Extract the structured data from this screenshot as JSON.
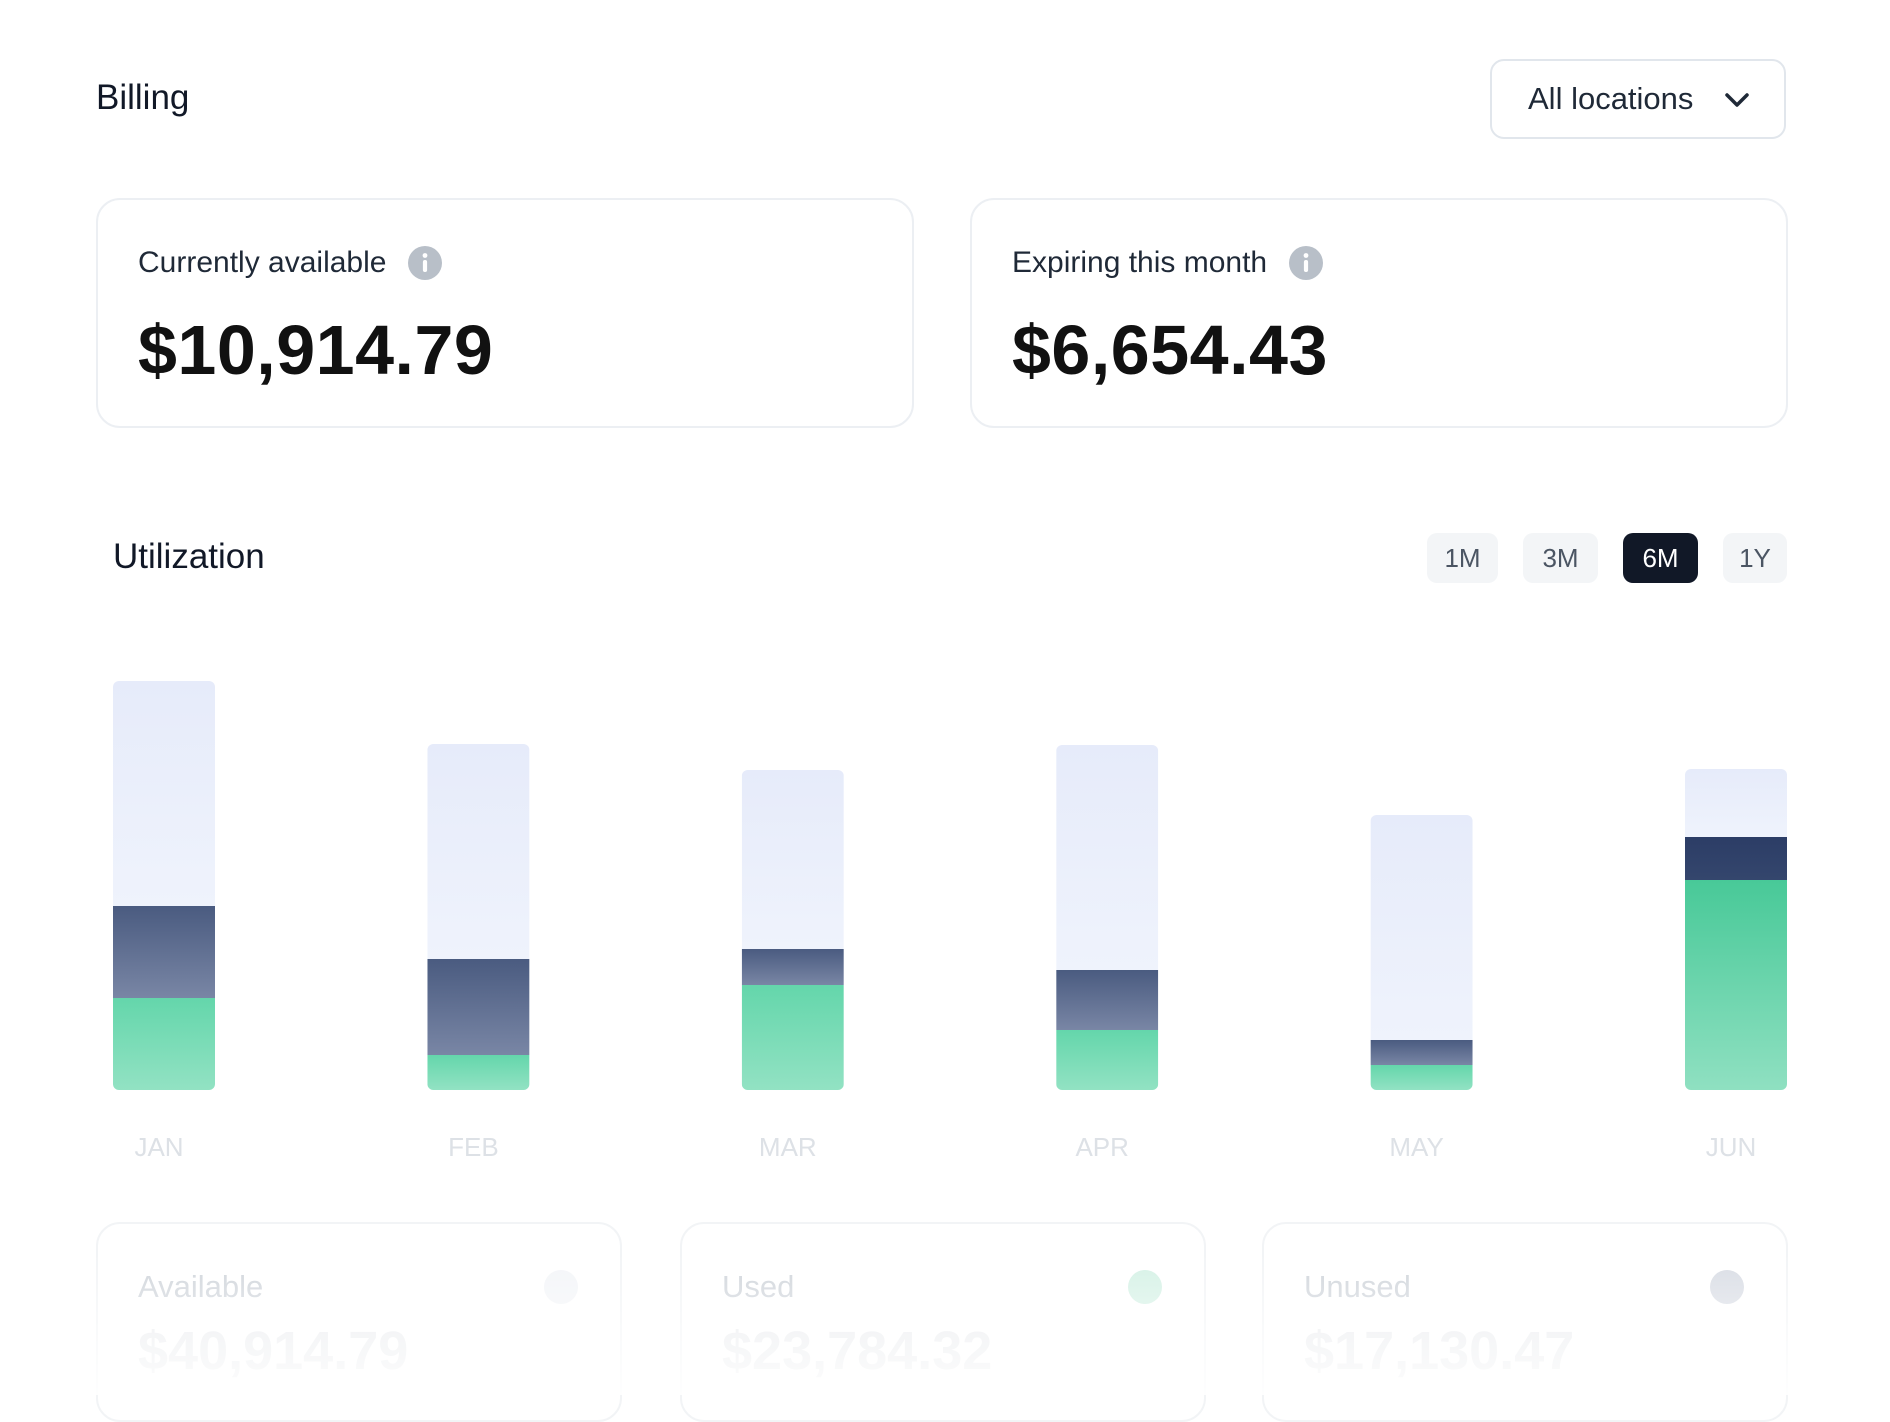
{
  "header": {
    "title": "Billing",
    "location_select": {
      "value": "All locations"
    }
  },
  "stats": [
    {
      "label": "Currently available",
      "value": "$10,914.79"
    },
    {
      "label": "Expiring this month",
      "value": "$6,654.43"
    }
  ],
  "utilization": {
    "title": "Utilization",
    "ranges": [
      "1M",
      "3M",
      "6M",
      "1Y"
    ],
    "active_range": "6M"
  },
  "legend": [
    {
      "label": "Available",
      "value": "$40,914.79",
      "dot_color": "#f3f5f8"
    },
    {
      "label": "Used",
      "value": "$23,784.32",
      "dot_color": "#d4f1e5"
    },
    {
      "label": "Unused",
      "value": "$17,130.47",
      "dot_color": "#d8dce4"
    }
  ],
  "colors": {
    "available": "#e6ebfa",
    "unused": "#4a5b80",
    "used": "#5fd3a5",
    "text_dark": "#111827",
    "active_button": "#111827"
  },
  "chart_data": {
    "type": "bar",
    "stacked": true,
    "categories": [
      "JAN",
      "FEB",
      "MAR",
      "APR",
      "MAY",
      "JUN"
    ],
    "series": [
      {
        "name": "Used",
        "values": [
          9.2,
          3.5,
          10.5,
          6,
          2.5,
          21
        ]
      },
      {
        "name": "Unused",
        "values": [
          9.2,
          9.6,
          3.6,
          6,
          2.5,
          4.3
        ]
      },
      {
        "name": "Available",
        "values": [
          22.5,
          21.5,
          17.9,
          22.5,
          22.5,
          6.8
        ]
      }
    ],
    "ylim": [
      0,
      41
    ],
    "grid": false
  }
}
